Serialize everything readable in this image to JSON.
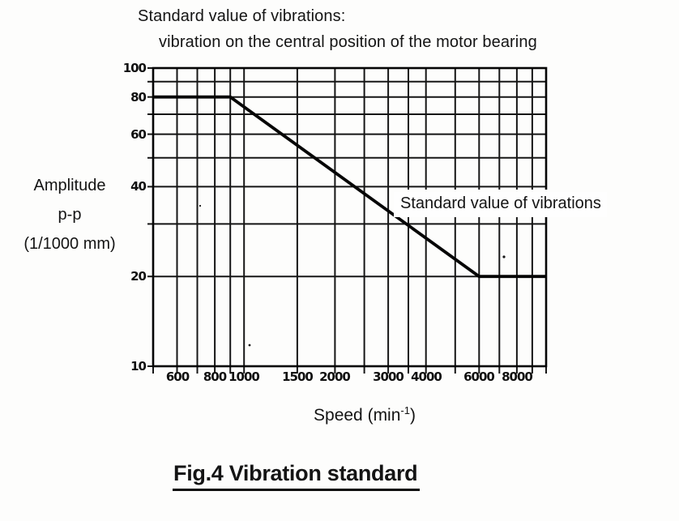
{
  "title": {
    "line1": "Standard value of vibrations:",
    "line2": "vibration on the central position of the motor bearing"
  },
  "y_axis": {
    "label_lines": [
      "Amplitude",
      "p-p",
      "(1/1000 mm)"
    ]
  },
  "x_axis": {
    "label_prefix": "Speed (min",
    "label_sup": "-1",
    "label_suffix": ")"
  },
  "annotation_label": "Standard value of vibrations",
  "caption": "Fig.4 Vibration standard",
  "chart_data": {
    "type": "line",
    "title": "Standard value of vibrations: vibration on the central position of the motor bearing",
    "xlabel": "Speed (min^-1)",
    "ylabel": "Amplitude p-p (1/1000 mm)",
    "x_scale": "log",
    "y_scale": "log",
    "xlim": [
      500,
      10000
    ],
    "ylim": [
      10,
      100
    ],
    "grid": true,
    "x_gridlines": [
      500,
      600,
      700,
      800,
      900,
      1000,
      1500,
      2000,
      2500,
      3000,
      3500,
      4000,
      5000,
      6000,
      7000,
      8000,
      9000,
      10000
    ],
    "y_gridlines": [
      10,
      20,
      30,
      40,
      50,
      60,
      70,
      80,
      90,
      100
    ],
    "x_tick_labels": [
      "600",
      "800",
      "1000",
      "1500",
      "2000",
      "3000",
      "4000",
      "6000",
      "8000"
    ],
    "x_tick_values": [
      600,
      800,
      1000,
      1500,
      2000,
      3000,
      4000,
      6000,
      8000
    ],
    "y_tick_labels": [
      "100",
      "80",
      "60",
      "40",
      "20",
      "10"
    ],
    "y_tick_values": [
      100,
      80,
      60,
      40,
      20,
      10
    ],
    "series": [
      {
        "name": "Standard value of vibrations",
        "points": [
          [
            500,
            80
          ],
          [
            900,
            80
          ],
          [
            6000,
            20
          ],
          [
            10000,
            20
          ]
        ]
      }
    ],
    "annotation": {
      "text": "Standard value of vibrations",
      "x": 3400,
      "y": 34,
      "anchor": "left"
    },
    "ink_color": "#161616",
    "line_color": "#050505",
    "background": "#fdfdfc"
  }
}
